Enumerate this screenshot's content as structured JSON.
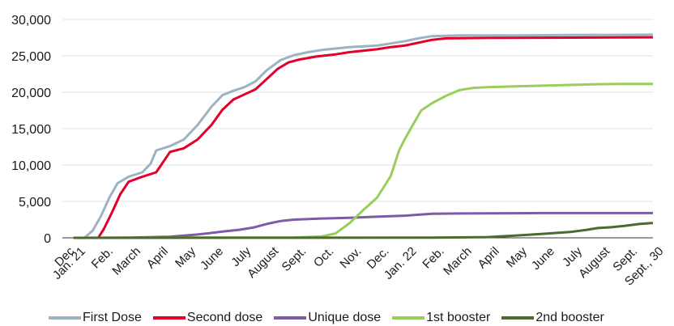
{
  "chart_data": {
    "type": "line",
    "title": "",
    "xlabel": "",
    "ylabel": "",
    "ylim": [
      0,
      30000
    ],
    "yticks": [
      "0",
      "5,000",
      "10,000",
      "15,000",
      "20,000",
      "25,000",
      "30,000"
    ],
    "ytick_values": [
      0,
      5000,
      10000,
      15000,
      20000,
      25000,
      30000
    ],
    "grid": "horizontal",
    "legend_position": "bottom",
    "x_labels": [
      "Dec",
      "Jan. 21",
      "Feb.",
      "March",
      "April",
      "May",
      "June",
      "July",
      "August",
      "Sept.",
      "Oct.",
      "Nov.",
      "Dec.",
      "Jan. 22",
      "Feb.",
      "March",
      "April",
      "May",
      "June",
      "July",
      "August",
      "Sept.",
      "Sept., 30"
    ],
    "x_label_months": [
      -0.4,
      0,
      1,
      2,
      3,
      4,
      5,
      6,
      7,
      8,
      9,
      10,
      11,
      12,
      13,
      14,
      15,
      16,
      17,
      18,
      19,
      20,
      20.95
    ],
    "x_range_months": [
      -0.4,
      21
    ],
    "series": [
      {
        "name": "First Dose",
        "color": "#9eb3c2",
        "points": [
          [
            0.4,
            0
          ],
          [
            0.7,
            1000
          ],
          [
            1.0,
            3000
          ],
          [
            1.3,
            5500
          ],
          [
            1.6,
            7500
          ],
          [
            2.0,
            8400
          ],
          [
            2.5,
            9000
          ],
          [
            2.8,
            10200
          ],
          [
            3.0,
            12000
          ],
          [
            3.5,
            12600
          ],
          [
            4.0,
            13500
          ],
          [
            4.5,
            15500
          ],
          [
            5.0,
            18000
          ],
          [
            5.4,
            19600
          ],
          [
            5.8,
            20200
          ],
          [
            6.2,
            20700
          ],
          [
            6.6,
            21500
          ],
          [
            7.0,
            23000
          ],
          [
            7.5,
            24400
          ],
          [
            8.0,
            25100
          ],
          [
            8.5,
            25500
          ],
          [
            9.0,
            25800
          ],
          [
            9.5,
            26000
          ],
          [
            10.0,
            26200
          ],
          [
            11.0,
            26400
          ],
          [
            11.5,
            26700
          ],
          [
            12.0,
            27000
          ],
          [
            12.5,
            27400
          ],
          [
            13.0,
            27700
          ],
          [
            14.0,
            27800
          ],
          [
            16.0,
            27800
          ],
          [
            18.0,
            27850
          ],
          [
            21.0,
            27900
          ]
        ]
      },
      {
        "name": "Second dose",
        "color": "#e3002b",
        "points": [
          [
            0.9,
            0
          ],
          [
            1.1,
            1200
          ],
          [
            1.4,
            3500
          ],
          [
            1.7,
            6000
          ],
          [
            2.0,
            7700
          ],
          [
            2.5,
            8400
          ],
          [
            3.0,
            9000
          ],
          [
            3.5,
            11800
          ],
          [
            4.0,
            12300
          ],
          [
            4.5,
            13500
          ],
          [
            5.0,
            15500
          ],
          [
            5.4,
            17600
          ],
          [
            5.8,
            19000
          ],
          [
            6.2,
            19700
          ],
          [
            6.6,
            20400
          ],
          [
            7.0,
            21800
          ],
          [
            7.4,
            23200
          ],
          [
            7.8,
            24100
          ],
          [
            8.2,
            24500
          ],
          [
            8.8,
            24900
          ],
          [
            9.5,
            25200
          ],
          [
            10.0,
            25500
          ],
          [
            11.0,
            25900
          ],
          [
            11.5,
            26200
          ],
          [
            12.0,
            26400
          ],
          [
            12.5,
            26800
          ],
          [
            13.0,
            27200
          ],
          [
            13.5,
            27400
          ],
          [
            15.0,
            27450
          ],
          [
            18.0,
            27500
          ],
          [
            21.0,
            27550
          ]
        ]
      },
      {
        "name": "Unique dose",
        "color": "#7e5ba6",
        "points": [
          [
            0,
            0
          ],
          [
            2.0,
            30
          ],
          [
            3.5,
            150
          ],
          [
            4.5,
            450
          ],
          [
            5.5,
            900
          ],
          [
            6.0,
            1100
          ],
          [
            6.5,
            1400
          ],
          [
            7.0,
            1900
          ],
          [
            7.5,
            2300
          ],
          [
            8.0,
            2500
          ],
          [
            9.0,
            2650
          ],
          [
            10.0,
            2750
          ],
          [
            11.0,
            2900
          ],
          [
            12.0,
            3050
          ],
          [
            13.0,
            3300
          ],
          [
            14.0,
            3350
          ],
          [
            17.0,
            3400
          ],
          [
            21.0,
            3400
          ]
        ]
      },
      {
        "name": "1st booster",
        "color": "#9acd5a",
        "points": [
          [
            0,
            0
          ],
          [
            8.0,
            50
          ],
          [
            9.0,
            200
          ],
          [
            9.5,
            600
          ],
          [
            10.0,
            2000
          ],
          [
            10.5,
            3800
          ],
          [
            11.0,
            5500
          ],
          [
            11.5,
            8500
          ],
          [
            11.8,
            12000
          ],
          [
            12.0,
            13500
          ],
          [
            12.3,
            15500
          ],
          [
            12.6,
            17500
          ],
          [
            13.0,
            18500
          ],
          [
            13.5,
            19500
          ],
          [
            14.0,
            20300
          ],
          [
            14.5,
            20600
          ],
          [
            15.0,
            20700
          ],
          [
            16.0,
            20800
          ],
          [
            17.0,
            20900
          ],
          [
            18.0,
            21000
          ],
          [
            19.0,
            21100
          ],
          [
            20.0,
            21150
          ],
          [
            21.0,
            21150
          ]
        ]
      },
      {
        "name": "2nd booster",
        "color": "#4b6a2e",
        "points": [
          [
            0,
            0
          ],
          [
            13.0,
            20
          ],
          [
            15.0,
            100
          ],
          [
            16.0,
            300
          ],
          [
            17.0,
            550
          ],
          [
            18.0,
            800
          ],
          [
            18.6,
            1100
          ],
          [
            19.0,
            1350
          ],
          [
            19.5,
            1450
          ],
          [
            20.0,
            1650
          ],
          [
            20.5,
            1900
          ],
          [
            21.0,
            2050
          ]
        ]
      }
    ]
  }
}
